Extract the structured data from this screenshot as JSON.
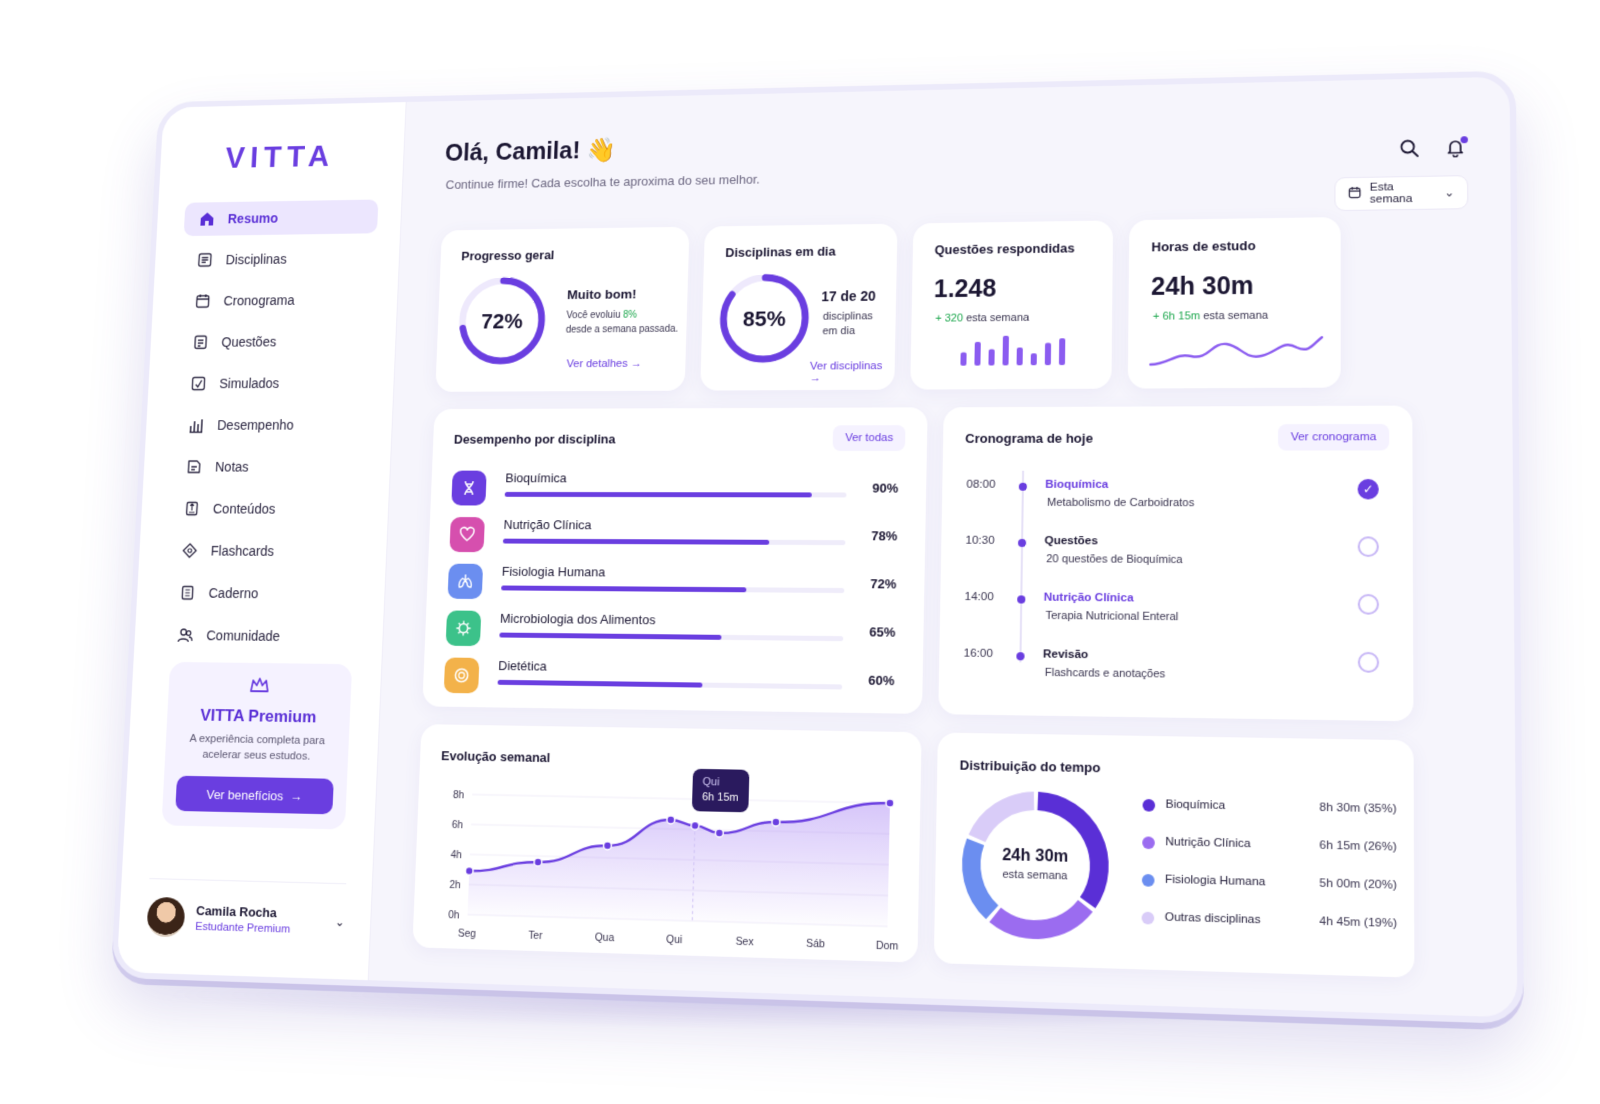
{
  "brand": "VITTA",
  "nav": [
    {
      "label": "Resumo",
      "icon": "home-icon",
      "active": true
    },
    {
      "label": "Disciplinas",
      "icon": "book-icon"
    },
    {
      "label": "Cronograma",
      "icon": "calendar-icon"
    },
    {
      "label": "Questões",
      "icon": "clipboard-icon"
    },
    {
      "label": "Simulados",
      "icon": "edit-check-icon"
    },
    {
      "label": "Desempenho",
      "icon": "bar-chart-icon"
    },
    {
      "label": "Notas",
      "icon": "note-icon"
    },
    {
      "label": "Conteúdos",
      "icon": "file-icon"
    },
    {
      "label": "Flashcards",
      "icon": "flashcards-icon"
    },
    {
      "label": "Caderno",
      "icon": "notebook-icon"
    },
    {
      "label": "Comunidade",
      "icon": "users-icon"
    }
  ],
  "premium": {
    "title": "VITTA Premium",
    "text": "A experiência completa para acelerar seus estudos.",
    "button": "Ver benefícios",
    "icon": "crown-icon"
  },
  "profile": {
    "name": "Camila Rocha",
    "role": "Estudante Premium"
  },
  "header": {
    "greeting": "Olá, Camila! 👋",
    "subtitle": "Continue firme! Cada escolha te aproxima do seu melhor.",
    "range": "Esta semana"
  },
  "stats": {
    "progress": {
      "title": "Progresso geral",
      "value": "72%",
      "fraction": 0.72,
      "headline": "Muito bom!",
      "line1_pre": "Você evoluiu ",
      "line1_hl": "8%",
      "line2": "desde a semana passada.",
      "link": "Ver detalhes →"
    },
    "disciplines": {
      "title": "Disciplinas em dia",
      "value": "85%",
      "fraction": 0.85,
      "count": "17 de 20",
      "label1": "disciplinas",
      "label2": "em dia",
      "link": "Ver disciplinas →"
    },
    "questions": {
      "title": "Questões respondidas",
      "value": "1.248",
      "delta": "+ 320",
      "delta_label": " esta semana",
      "bars": [
        0.45,
        0.8,
        0.55,
        1.0,
        0.6,
        0.4,
        0.75,
        0.9
      ]
    },
    "hours": {
      "title": "Horas de estudo",
      "value": "24h 30m",
      "delta": "+ 6h 15m",
      "delta_label": " esta semana"
    }
  },
  "performance": {
    "title": "Desempenho por disciplina",
    "button": "Ver todas",
    "rows": [
      {
        "name": "Bioquímica",
        "pct": "90%",
        "value": 0.9,
        "color": "#6a3ee0",
        "icon": "dna-icon"
      },
      {
        "name": "Nutrição Clínica",
        "pct": "78%",
        "value": 0.78,
        "color": "#d64fae",
        "icon": "heart-icon"
      },
      {
        "name": "Fisiologia Humana",
        "pct": "72%",
        "value": 0.72,
        "color": "#6b8ef0",
        "icon": "lungs-icon"
      },
      {
        "name": "Microbiologia dos Alimentos",
        "pct": "65%",
        "value": 0.65,
        "color": "#3cc28a",
        "icon": "microbe-icon"
      },
      {
        "name": "Dietética",
        "pct": "60%",
        "value": 0.6,
        "color": "#f3b24a",
        "icon": "plate-icon"
      }
    ]
  },
  "schedule": {
    "title": "Cronograma de hoje",
    "button": "Ver cronograma",
    "items": [
      {
        "time": "08:00",
        "title": "Bioquímica",
        "desc": "Metabolismo de Carboidratos",
        "done": true,
        "accent": true
      },
      {
        "time": "10:30",
        "title": "Questões",
        "desc": "20 questões de Bioquímica",
        "done": false,
        "accent": false
      },
      {
        "time": "14:00",
        "title": "Nutrição Clínica",
        "desc": "Terapia Nutricional Enteral",
        "done": false,
        "accent": true
      },
      {
        "time": "16:00",
        "title": "Revisão",
        "desc": "Flashcards e anotações",
        "done": false,
        "accent": false
      }
    ]
  },
  "weekly": {
    "title": "Evolução semanal",
    "tooltip": {
      "day": "Qui",
      "value": "6h 15m"
    }
  },
  "distribution": {
    "title": "Distribuição do tempo",
    "center_value": "24h 30m",
    "center_label": "esta semana",
    "items": [
      {
        "name": "Bioquímica",
        "value": "8h 30m (35%)",
        "share": 35,
        "color": "#5a2fd6"
      },
      {
        "name": "Nutrição Clínica",
        "value": "6h 15m (26%)",
        "share": 26,
        "color": "#9b6cf0"
      },
      {
        "name": "Fisiologia Humana",
        "value": "5h 00m (20%)",
        "share": 20,
        "color": "#6b8ef0"
      },
      {
        "name": "Outras disciplinas",
        "value": "4h 45m (19%)",
        "share": 19,
        "color": "#d9ccf8"
      }
    ]
  },
  "chart_data": {
    "type": "area",
    "categories": [
      "Seg",
      "Ter",
      "Qua",
      "Qui",
      "Sex",
      "Sáb",
      "Dom"
    ],
    "x": [
      0,
      1,
      2,
      2.9,
      3.25,
      3.6,
      4.4,
      6
    ],
    "values": [
      2.9,
      3.6,
      4.8,
      6.6,
      6.25,
      5.8,
      6.6,
      8.0
    ],
    "yticks": [
      "0h",
      "2h",
      "4h",
      "6h",
      "8h"
    ],
    "ylim": [
      0,
      8
    ]
  },
  "colors": {
    "accent": "#6a3ee0",
    "positive": "#1fa84f"
  }
}
